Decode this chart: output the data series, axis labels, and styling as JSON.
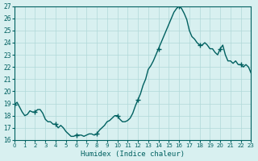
{
  "xlabel": "Humidex (Indice chaleur)",
  "ylabel": "",
  "xlim": [
    0,
    23
  ],
  "ylim": [
    16,
    27
  ],
  "yticks": [
    16,
    17,
    18,
    19,
    20,
    21,
    22,
    23,
    24,
    25,
    26,
    27
  ],
  "xticks": [
    0,
    1,
    2,
    3,
    4,
    5,
    6,
    7,
    8,
    9,
    10,
    11,
    12,
    13,
    14,
    15,
    16,
    17,
    18,
    19,
    20,
    21,
    22,
    23
  ],
  "line_color": "#006060",
  "bg_color": "#d8f0f0",
  "grid_color": "#b0d8d8",
  "x": [
    0,
    0.25,
    0.5,
    0.75,
    1.0,
    1.25,
    1.5,
    1.75,
    2.0,
    2.25,
    2.5,
    2.75,
    3.0,
    3.25,
    3.5,
    3.75,
    4.0,
    4.25,
    4.5,
    4.75,
    5.0,
    5.25,
    5.5,
    5.75,
    6.0,
    6.25,
    6.5,
    6.75,
    7.0,
    7.25,
    7.5,
    7.75,
    8.0,
    8.25,
    8.5,
    8.75,
    9.0,
    9.25,
    9.5,
    9.75,
    10.0,
    10.25,
    10.5,
    10.75,
    11.0,
    11.25,
    11.5,
    11.75,
    12.0,
    12.25,
    12.5,
    12.75,
    13.0,
    13.25,
    13.5,
    13.75,
    14.0,
    14.25,
    14.5,
    14.75,
    15.0,
    15.25,
    15.5,
    15.75,
    16.0,
    16.25,
    16.5,
    16.75,
    17.0,
    17.25,
    17.5,
    17.75,
    18.0,
    18.25,
    18.5,
    18.75,
    19.0,
    19.25,
    19.5,
    19.75,
    20.0,
    20.25,
    20.5,
    20.75,
    21.0,
    21.25,
    21.5,
    21.75,
    22.0,
    22.25,
    22.5,
    22.75,
    23.0
  ],
  "y": [
    18.9,
    19.1,
    18.7,
    18.3,
    18.0,
    18.1,
    18.4,
    18.3,
    18.3,
    18.5,
    18.5,
    18.2,
    17.7,
    17.5,
    17.5,
    17.3,
    17.3,
    17.0,
    17.2,
    17.0,
    16.7,
    16.5,
    16.3,
    16.3,
    16.4,
    16.4,
    16.4,
    16.3,
    16.4,
    16.5,
    16.5,
    16.4,
    16.5,
    16.8,
    17.0,
    17.2,
    17.5,
    17.6,
    17.8,
    18.0,
    18.0,
    17.7,
    17.5,
    17.5,
    17.6,
    17.8,
    18.2,
    18.8,
    19.3,
    19.8,
    20.5,
    21.0,
    21.8,
    22.1,
    22.5,
    23.0,
    23.5,
    24.0,
    24.5,
    25.0,
    25.5,
    26.0,
    26.5,
    26.8,
    27.0,
    26.8,
    26.4,
    25.9,
    25.0,
    24.5,
    24.3,
    24.0,
    23.8,
    23.8,
    24.0,
    23.8,
    23.5,
    23.5,
    23.2,
    23.0,
    23.5,
    23.8,
    23.0,
    22.5,
    22.5,
    22.3,
    22.5,
    22.2,
    22.2,
    22.0,
    22.2,
    22.0,
    21.5
  ],
  "marker": "+",
  "marker_interval": 8,
  "linewidth": 1.0,
  "markersize": 4
}
